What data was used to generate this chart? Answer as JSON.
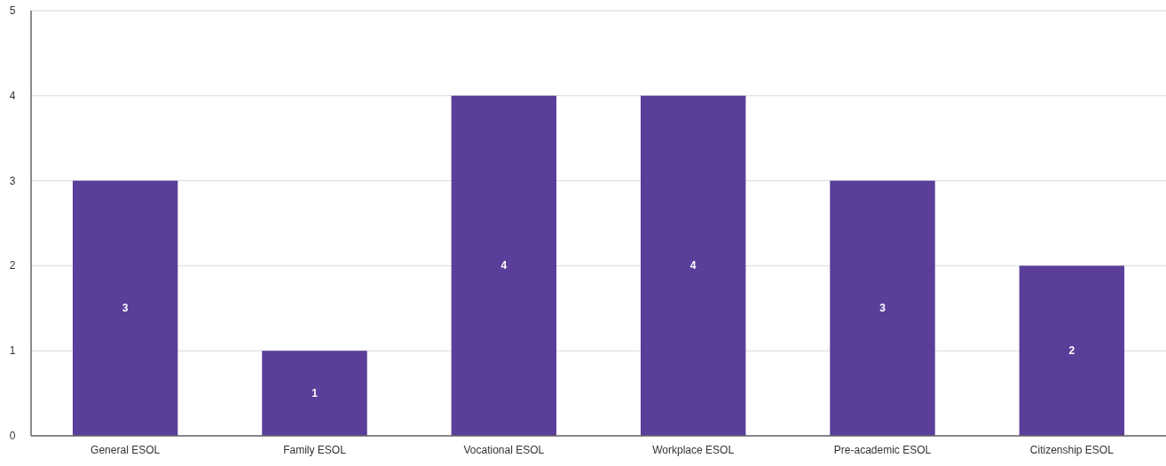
{
  "chart_data": {
    "type": "bar",
    "categories": [
      "General ESOL",
      "Family ESOL",
      "Vocational ESOL",
      "Workplace ESOL",
      "Pre-academic ESOL",
      "Citizenship ESOL"
    ],
    "values": [
      3,
      1,
      4,
      4,
      3,
      2
    ],
    "color": "#5a3e99",
    "ylim": [
      0,
      5
    ],
    "yticks": [
      0,
      1,
      2,
      3,
      4,
      5
    ],
    "grid": "y",
    "data_labels": true
  }
}
